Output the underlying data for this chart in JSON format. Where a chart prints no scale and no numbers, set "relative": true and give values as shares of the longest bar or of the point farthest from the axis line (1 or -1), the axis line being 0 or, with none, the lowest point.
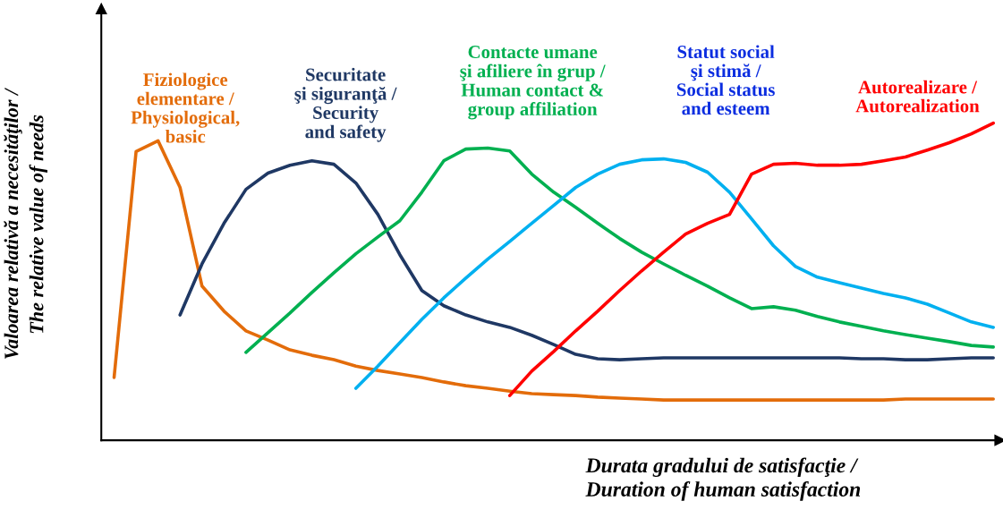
{
  "chart_data": {
    "type": "line",
    "relative": true,
    "marker": "none",
    "line_style": "solid",
    "xlabel": "Durata gradului de satisfacţie /\nDuration of human satisfaction",
    "ylabel": "Valoarea relativă a necesităţilor /\nThe relative value of needs",
    "categories": [
      null,
      null,
      null,
      null,
      null,
      null,
      null,
      null,
      null,
      null,
      null,
      null,
      null,
      null,
      null,
      null,
      null,
      null,
      null,
      null,
      null,
      null,
      null,
      null,
      null,
      null,
      null,
      null,
      null,
      null,
      null,
      null,
      null,
      null,
      null,
      null,
      null,
      null,
      null,
      null,
      null
    ],
    "series": [
      {
        "name": "Fiziologice\nelementare /\nPhysiological,\nbasic",
        "color": "#e36c0a",
        "values": [
          0.198,
          0.91,
          0.944,
          0.797,
          0.486,
          0.407,
          0.345,
          0.316,
          0.285,
          0.268,
          0.254,
          0.234,
          0.22,
          0.209,
          0.198,
          0.184,
          0.172,
          0.164,
          0.155,
          0.147,
          0.144,
          0.141,
          0.136,
          0.133,
          0.13,
          0.127,
          0.127,
          0.127,
          0.127,
          0.127,
          0.127,
          0.127,
          0.127,
          0.127,
          0.127,
          0.127,
          0.13,
          0.13,
          0.13,
          0.13,
          0.13
        ]
      },
      {
        "name": "Securitate\nşi siguranţă /\nSecurity\nand safety",
        "color": "#1f3864",
        "values": [
          null,
          null,
          null,
          0.395,
          0.556,
          0.684,
          0.791,
          0.842,
          0.867,
          0.881,
          0.87,
          0.811,
          0.712,
          0.585,
          0.472,
          0.424,
          0.395,
          0.373,
          0.356,
          0.331,
          0.302,
          0.271,
          0.257,
          0.254,
          0.257,
          0.26,
          0.26,
          0.26,
          0.26,
          0.26,
          0.26,
          0.26,
          0.26,
          0.26,
          0.257,
          0.257,
          0.254,
          0.254,
          0.257,
          0.26,
          0.26
        ]
      },
      {
        "name": "Contacte umane\nşi afiliere în grup /\nHuman contact &\ngroup affiliation",
        "color": "#00b050",
        "values": [
          null,
          null,
          null,
          null,
          null,
          null,
          0.277,
          0.339,
          0.401,
          0.466,
          0.528,
          0.588,
          0.641,
          0.692,
          0.782,
          0.881,
          0.918,
          0.921,
          0.912,
          0.839,
          0.782,
          0.734,
          0.684,
          0.636,
          0.593,
          0.556,
          0.52,
          0.486,
          0.449,
          0.415,
          0.421,
          0.41,
          0.39,
          0.373,
          0.359,
          0.345,
          0.333,
          0.322,
          0.311,
          0.299,
          0.294
        ]
      },
      {
        "name": "Statut social\nşi stimă /\nSocial status\nand esteem",
        "color": "#00b0f0",
        "values": [
          null,
          null,
          null,
          null,
          null,
          null,
          null,
          null,
          null,
          null,
          null,
          0.164,
          0.234,
          0.308,
          0.381,
          0.449,
          0.511,
          0.571,
          0.627,
          0.684,
          0.74,
          0.797,
          0.839,
          0.87,
          0.884,
          0.887,
          0.876,
          0.845,
          0.782,
          0.698,
          0.613,
          0.548,
          0.514,
          0.497,
          0.48,
          0.463,
          0.449,
          0.429,
          0.401,
          0.373,
          0.356
        ]
      },
      {
        "name": "Autorealizare /\nAutorealization",
        "color": "#ff0000",
        "values": [
          null,
          null,
          null,
          null,
          null,
          null,
          null,
          null,
          null,
          null,
          null,
          null,
          null,
          null,
          null,
          null,
          null,
          null,
          0.141,
          0.218,
          0.28,
          0.345,
          0.407,
          0.472,
          0.534,
          0.593,
          0.65,
          0.684,
          0.712,
          0.839,
          0.87,
          0.873,
          0.867,
          0.867,
          0.87,
          0.881,
          0.893,
          0.915,
          0.938,
          0.966,
          1.0
        ]
      }
    ]
  }
}
